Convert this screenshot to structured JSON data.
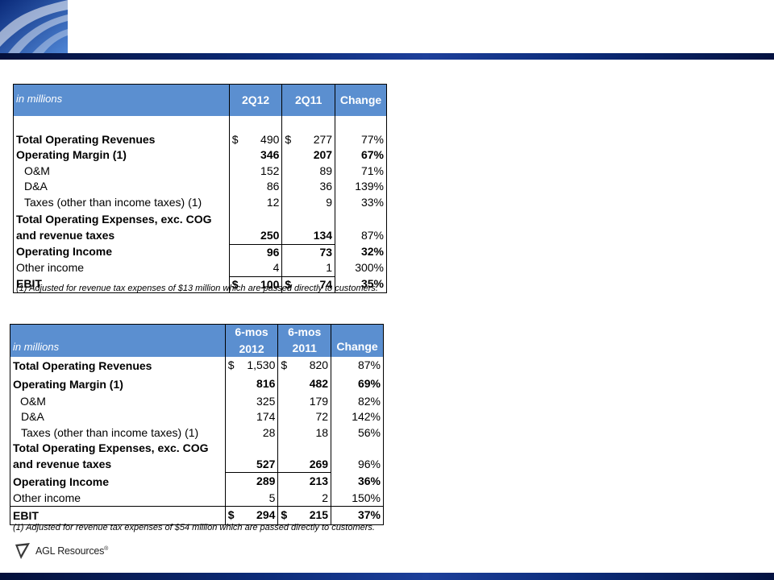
{
  "brand": {
    "name": "AGL Resources",
    "mark": "®"
  },
  "colors": {
    "header_fill": "#5b8fd0",
    "banner": "#0c2c7a"
  },
  "table_quarter": {
    "units": "in millions",
    "col1": "2Q12",
    "col2": "2Q11",
    "col3": "Change",
    "rows": {
      "revenues": {
        "label": "Total Operating Revenues",
        "cur": "$",
        "v1": "490",
        "cur2": "$",
        "v2": "277",
        "chg": "77%"
      },
      "margin": {
        "label": "Operating Margin (1)",
        "v1": "346",
        "v2": "207",
        "chg": "67%"
      },
      "om": {
        "label": "O&M",
        "v1": "152",
        "v2": "89",
        "chg": "71%"
      },
      "da": {
        "label": "D&A",
        "v1": "86",
        "v2": "36",
        "chg": "139%"
      },
      "taxes": {
        "label": "Taxes (other than income taxes) (1)",
        "v1": "12",
        "v2": "9",
        "chg": "33%"
      },
      "opex1": {
        "label": "Total Operating Expenses, exc. COG"
      },
      "opex2": {
        "label": "and revenue taxes",
        "v1": "250",
        "v2": "134",
        "chg": "87%"
      },
      "opinc": {
        "label": "Operating Income",
        "v1": "96",
        "v2": "73",
        "chg": "32%"
      },
      "other": {
        "label": "Other income",
        "v1": "4",
        "v2": "1",
        "chg": "300%"
      },
      "ebit": {
        "label": "EBIT",
        "cur": "$",
        "v1": "100",
        "cur2": "$",
        "v2": "74",
        "chg": "35%"
      }
    },
    "footnote": "(1) Adjusted for revenue tax expenses of $13 million which are passed directly to customers."
  },
  "table_sixmos": {
    "units": "in millions",
    "col1_top": "6-mos",
    "col1": "2012",
    "col2_top": "6-mos",
    "col2": "2011",
    "col3": "Change",
    "rows": {
      "revenues": {
        "label": "Total Operating Revenues",
        "cur": "$",
        "v1": "1,530",
        "cur2": "$",
        "v2": "820",
        "chg": "87%"
      },
      "margin": {
        "label": "Operating Margin (1)",
        "v1": "816",
        "v2": "482",
        "chg": "69%"
      },
      "om": {
        "label": "O&M",
        "v1": "325",
        "v2": "179",
        "chg": "82%"
      },
      "da": {
        "label": "D&A",
        "v1": "174",
        "v2": "72",
        "chg": "142%"
      },
      "taxes": {
        "label": "Taxes (other than income taxes) (1)",
        "v1": "28",
        "v2": "18",
        "chg": "56%"
      },
      "opex1": {
        "label": "Total Operating Expenses, exc. COG"
      },
      "opex2": {
        "label": "and revenue taxes",
        "v1": "527",
        "v2": "269",
        "chg": "96%"
      },
      "opinc": {
        "label": "Operating Income",
        "v1": "289",
        "v2": "213",
        "chg": "36%"
      },
      "other": {
        "label": "Other income",
        "v1": "5",
        "v2": "2",
        "chg": "150%"
      },
      "ebit": {
        "label": "EBIT",
        "cur": "$",
        "v1": "294",
        "cur2": "$",
        "v2": "215",
        "chg": "37%"
      }
    },
    "footnote": "(1) Adjusted for revenue tax expenses of $54 million which are passed directly to customers."
  }
}
